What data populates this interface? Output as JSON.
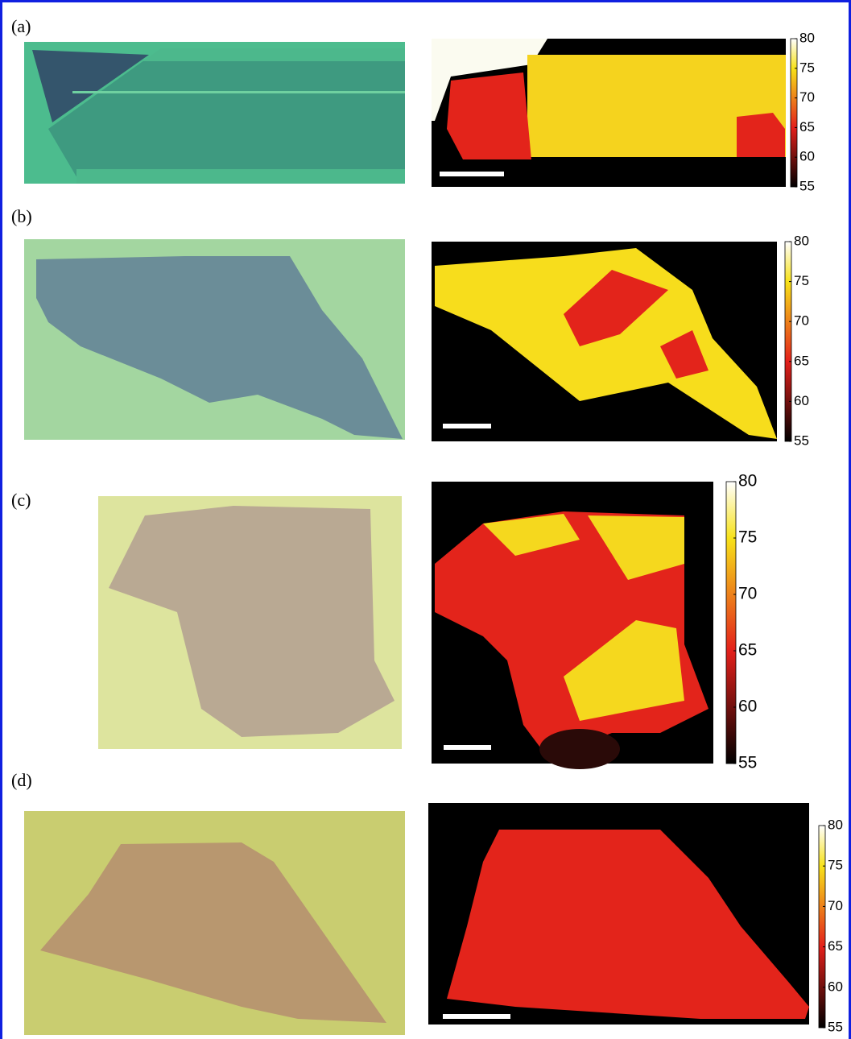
{
  "panels": [
    {
      "label": "(a)",
      "colorbar": {
        "ticks": [
          80,
          75,
          70,
          65,
          60,
          55
        ]
      }
    },
    {
      "label": "(b)",
      "colorbar": {
        "ticks": [
          80,
          75,
          70,
          65,
          60,
          55
        ]
      }
    },
    {
      "label": "(c)",
      "colorbar": {
        "ticks": [
          80,
          75,
          70,
          65,
          60,
          55
        ]
      }
    },
    {
      "label": "(d)",
      "colorbar": {
        "ticks": [
          80,
          75,
          70,
          65,
          60,
          55
        ]
      }
    }
  ]
}
